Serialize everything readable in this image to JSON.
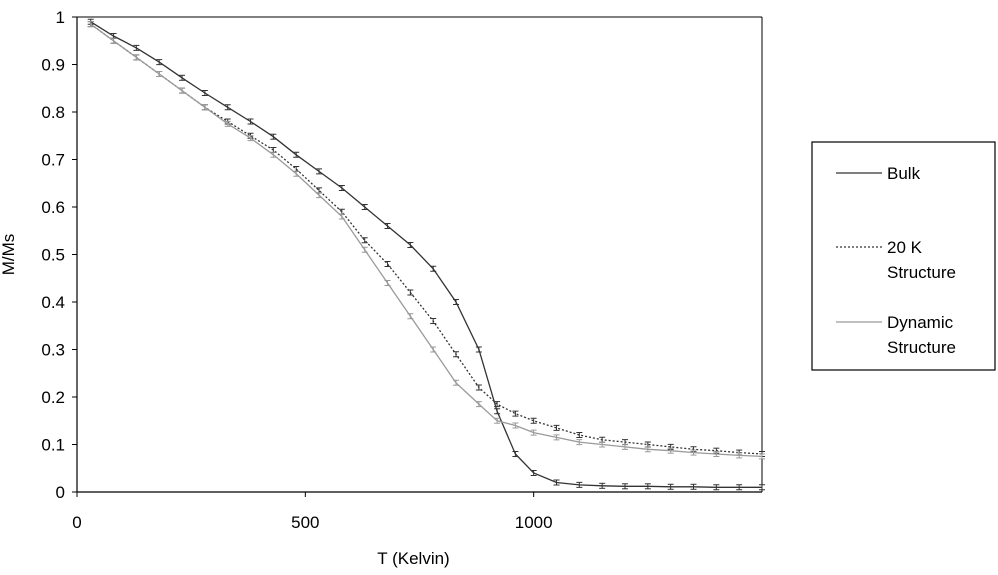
{
  "chart_data": {
    "type": "line",
    "title": "",
    "xlabel": "T (Kelvin)",
    "ylabel": "M/Ms",
    "xlim": [
      0,
      1500
    ],
    "ylim": [
      0,
      1
    ],
    "xticks": [
      0,
      500,
      1000
    ],
    "yticks": [
      0,
      0.1,
      0.2,
      0.3,
      0.4,
      0.5,
      0.6,
      0.7,
      0.8,
      0.9,
      1
    ],
    "yticklabels": [
      "0",
      "0.1",
      "0.2",
      "0.3",
      "0.4",
      "0.5",
      "0.6",
      "0.7",
      "0.8",
      "0.9",
      "1"
    ],
    "xticklabels": [
      "0",
      "500",
      "1000"
    ],
    "grid": false,
    "legend": "right",
    "error_bars": true,
    "series": [
      {
        "name": "Bulk",
        "legend_lines": [
          "Bulk"
        ],
        "style": "solid",
        "color": "#333333",
        "x": [
          30,
          80,
          130,
          180,
          230,
          280,
          330,
          380,
          430,
          480,
          530,
          580,
          630,
          680,
          730,
          780,
          830,
          880,
          920,
          960,
          1000,
          1050,
          1100,
          1150,
          1200,
          1250,
          1300,
          1350,
          1400,
          1450,
          1500
        ],
        "y": [
          0.99,
          0.96,
          0.935,
          0.905,
          0.872,
          0.84,
          0.81,
          0.78,
          0.748,
          0.71,
          0.675,
          0.64,
          0.6,
          0.56,
          0.52,
          0.47,
          0.4,
          0.3,
          0.17,
          0.08,
          0.04,
          0.02,
          0.015,
          0.013,
          0.012,
          0.012,
          0.011,
          0.011,
          0.01,
          0.01,
          0.01
        ]
      },
      {
        "name": "20 K Structure",
        "legend_lines": [
          "20 K",
          "Structure"
        ],
        "style": "dotted",
        "color": "#333333",
        "x": [
          30,
          80,
          130,
          180,
          230,
          280,
          330,
          380,
          430,
          480,
          530,
          580,
          630,
          680,
          730,
          780,
          830,
          880,
          920,
          960,
          1000,
          1050,
          1100,
          1150,
          1200,
          1250,
          1300,
          1350,
          1400,
          1450,
          1500
        ],
        "y": [
          0.985,
          0.95,
          0.915,
          0.88,
          0.845,
          0.81,
          0.78,
          0.75,
          0.72,
          0.68,
          0.635,
          0.59,
          0.53,
          0.48,
          0.42,
          0.36,
          0.29,
          0.22,
          0.185,
          0.165,
          0.15,
          0.135,
          0.12,
          0.11,
          0.105,
          0.1,
          0.095,
          0.09,
          0.087,
          0.083,
          0.08
        ]
      },
      {
        "name": "Dynamic Structure",
        "legend_lines": [
          "Dynamic",
          "Structure"
        ],
        "style": "solid",
        "color": "#9a9a9a",
        "x": [
          30,
          80,
          130,
          180,
          230,
          280,
          330,
          380,
          430,
          480,
          530,
          580,
          630,
          680,
          730,
          780,
          830,
          880,
          920,
          960,
          1000,
          1050,
          1100,
          1150,
          1200,
          1250,
          1300,
          1350,
          1400,
          1450,
          1500
        ],
        "y": [
          0.985,
          0.95,
          0.915,
          0.88,
          0.845,
          0.81,
          0.775,
          0.745,
          0.71,
          0.67,
          0.625,
          0.58,
          0.51,
          0.44,
          0.37,
          0.3,
          0.23,
          0.185,
          0.15,
          0.14,
          0.125,
          0.115,
          0.105,
          0.1,
          0.095,
          0.09,
          0.087,
          0.083,
          0.08,
          0.077,
          0.075
        ]
      }
    ]
  }
}
